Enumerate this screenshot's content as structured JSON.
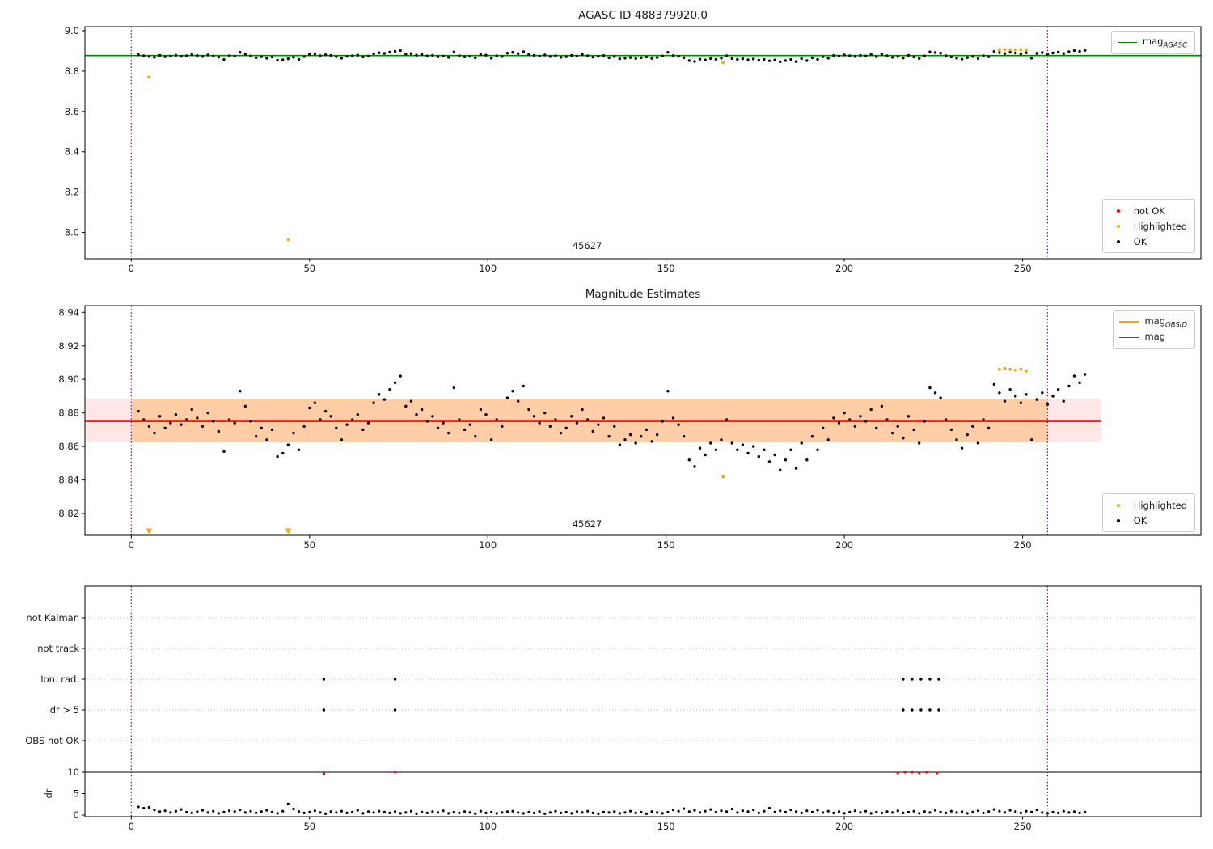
{
  "colors": {
    "mag_agasc_line": "#008000",
    "mag_line": "#ff0000",
    "highlighted": "#ffa500",
    "not_ok": "#ff0000",
    "ok": "#000000",
    "obsid_boundary": "#800080",
    "band_inner": "rgba(255,140,0,0.28)",
    "band_outer": "rgba(255,60,60,0.12)",
    "grid_dotted": "#bdbdbd",
    "axis": "#000000",
    "text": "#1a1a1a"
  },
  "series_data": {
    "x": [
      2,
      3.5,
      5,
      6.5,
      8,
      9.5,
      11,
      12.5,
      14,
      15.5,
      17,
      18.5,
      20,
      21.5,
      23,
      24.5,
      26,
      27.5,
      29,
      30.5,
      32,
      33.5,
      35,
      36.5,
      38,
      39.5,
      41,
      42.5,
      44,
      45.5,
      47,
      48.5,
      50,
      51.5,
      53,
      54.5,
      56,
      57.5,
      59,
      60.5,
      62,
      63.5,
      65,
      66.5,
      68,
      69.5,
      71,
      72.5,
      74,
      75.5,
      77,
      78.5,
      80,
      81.5,
      83,
      84.5,
      86,
      87.5,
      89,
      90.5,
      92,
      93.5,
      95,
      96.5,
      98,
      99.5,
      101,
      102.5,
      104,
      105.5,
      107,
      108.5,
      110,
      111.5,
      113,
      114.5,
      116,
      117.5,
      119,
      120.5,
      122,
      123.5,
      125,
      126.5,
      128,
      129.5,
      131,
      132.5,
      134,
      135.5,
      137,
      138.5,
      140,
      141.5,
      143,
      144.5,
      146,
      147.5,
      149,
      150.5,
      152,
      153.5,
      155,
      156.5,
      158,
      159.5,
      161,
      162.5,
      164,
      165.5,
      167,
      168.5,
      170,
      171.5,
      173,
      174.5,
      176,
      177.5,
      179,
      180.5,
      182,
      183.5,
      185,
      186.5,
      188,
      189.5,
      191,
      192.5,
      194,
      195.5,
      197,
      198.5,
      200,
      201.5,
      203,
      204.5,
      206,
      207.5,
      209,
      210.5,
      212,
      213.5,
      215,
      216.5,
      218,
      219.5,
      221,
      222.5,
      224,
      225.5,
      227,
      228.5,
      230,
      231.5,
      233,
      234.5,
      236,
      237.5,
      239,
      240.5,
      242,
      243.5,
      245,
      246.5,
      248,
      249.5,
      251,
      252.5,
      254,
      255.5,
      257,
      258.5,
      260,
      261.5,
      263,
      264.5,
      266,
      267.5
    ],
    "mag": [
      8.881,
      8.876,
      8.872,
      8.868,
      8.878,
      8.871,
      8.874,
      8.879,
      8.873,
      8.876,
      8.882,
      8.877,
      8.872,
      8.88,
      8.875,
      8.869,
      8.857,
      8.876,
      8.874,
      8.893,
      8.884,
      8.875,
      8.866,
      8.871,
      8.864,
      8.87,
      8.854,
      8.856,
      8.861,
      8.868,
      8.858,
      8.872,
      8.883,
      8.886,
      8.876,
      8.881,
      8.878,
      8.871,
      8.864,
      8.873,
      8.876,
      8.879,
      8.87,
      8.874,
      8.886,
      8.891,
      8.888,
      8.894,
      8.898,
      8.902,
      8.884,
      8.887,
      8.879,
      8.882,
      8.875,
      8.878,
      8.871,
      8.874,
      8.868,
      8.895,
      8.876,
      8.87,
      8.873,
      8.866,
      8.882,
      8.879,
      8.864,
      8.876,
      8.872,
      8.889,
      8.893,
      8.887,
      8.896,
      8.882,
      8.878,
      8.874,
      8.88,
      8.872,
      8.876,
      8.868,
      8.871,
      8.878,
      8.874,
      8.882,
      8.876,
      8.869,
      8.873,
      8.877,
      8.866,
      8.872,
      8.861,
      8.864,
      8.867,
      8.862,
      8.866,
      8.87,
      8.863,
      8.867,
      8.875,
      8.893,
      8.877,
      8.873,
      8.866,
      8.852,
      8.848,
      8.859,
      8.855,
      8.862,
      8.858,
      8.864,
      8.876,
      8.862,
      8.858,
      8.861,
      8.856,
      8.86,
      8.854,
      8.858,
      8.851,
      8.855,
      8.846,
      8.852,
      8.858,
      8.847,
      8.862,
      8.852,
      8.866,
      8.858,
      8.871,
      8.864,
      8.877,
      8.874,
      8.88,
      8.876,
      8.872,
      8.878,
      8.875,
      8.882,
      8.871,
      8.884,
      8.876,
      8.868,
      8.872,
      8.865,
      8.878,
      8.87,
      8.862,
      8.875,
      8.895,
      8.892,
      8.889,
      8.876,
      8.87,
      8.864,
      8.859,
      8.867,
      8.872,
      8.862,
      8.876,
      8.871,
      8.897,
      8.892,
      8.887,
      8.894,
      8.89,
      8.886,
      8.891,
      8.864,
      8.888,
      8.892,
      8.885,
      8.89,
      8.894,
      8.887,
      8.896,
      8.902,
      8.898,
      8.903
    ],
    "dr": [
      1.9,
      1.6,
      1.8,
      1.2,
      0.8,
      1.0,
      0.6,
      0.9,
      1.3,
      0.7,
      0.5,
      0.8,
      1.1,
      0.6,
      0.9,
      0.4,
      0.7,
      1.0,
      0.8,
      1.2,
      0.6,
      0.9,
      0.5,
      0.8,
      1.1,
      0.7,
      0.4,
      0.9,
      2.6,
      1.4,
      0.8,
      0.5,
      0.7,
      1.0,
      0.6,
      0.3,
      0.8,
      0.6,
      0.9,
      0.5,
      0.7,
      1.1,
      0.4,
      0.8,
      0.6,
      0.9,
      0.7,
      0.5,
      0.8,
      0.4,
      0.6,
      0.9,
      0.3,
      0.7,
      0.5,
      0.8,
      0.6,
      1.0,
      0.4,
      0.7,
      0.5,
      0.8,
      0.6,
      0.3,
      0.9,
      0.5,
      0.7,
      0.4,
      0.6,
      0.8,
      0.9,
      0.6,
      0.4,
      0.7,
      0.5,
      0.8,
      0.3,
      0.6,
      0.9,
      0.5,
      0.7,
      0.4,
      0.8,
      0.6,
      0.9,
      0.5,
      0.3,
      0.7,
      0.6,
      0.8,
      0.4,
      0.6,
      0.9,
      0.5,
      0.7,
      0.3,
      0.8,
      0.6,
      0.4,
      0.7,
      1.2,
      0.9,
      1.5,
      0.8,
      1.1,
      0.6,
      0.9,
      1.3,
      0.7,
      1.0,
      0.8,
      1.4,
      0.6,
      1.0,
      0.8,
      1.2,
      0.5,
      0.9,
      1.6,
      0.7,
      1.0,
      0.7,
      1.2,
      0.8,
      0.5,
      1.0,
      0.7,
      1.1,
      0.6,
      0.9,
      0.5,
      0.8,
      0.4,
      0.7,
      1.0,
      0.6,
      0.9,
      0.4,
      0.7,
      0.5,
      0.8,
      0.6,
      1.0,
      0.5,
      0.7,
      0.9,
      0.4,
      0.8,
      0.6,
      1.1,
      0.7,
      0.5,
      0.9,
      0.6,
      0.8,
      0.4,
      0.7,
      1.0,
      0.5,
      0.8,
      1.3,
      0.9,
      0.6,
      1.1,
      0.8,
      0.5,
      0.9,
      0.7,
      1.2,
      0.6,
      0.4,
      0.7,
      0.5,
      0.9,
      0.6,
      0.8,
      0.5,
      0.7
    ]
  },
  "chart_data": [
    {
      "type": "scatter",
      "title": "AGASC ID 488379920.0",
      "xlim": [
        -13,
        300
      ],
      "ylim": [
        7.87,
        9.02
      ],
      "xticks": [
        0,
        50,
        100,
        150,
        200,
        250
      ],
      "yticks": [
        9.0,
        8.8,
        8.6,
        8.4,
        8.2,
        8.0
      ],
      "ytick_labels": [
        "9.0",
        "8.8",
        "8.6",
        "8.4",
        "8.2",
        "8.0"
      ],
      "mag_agasc": 8.877,
      "obsid_boundaries": [
        0,
        257
      ],
      "annotation": {
        "text": "45627",
        "x": 128.5
      },
      "legend_line": [
        {
          "main": "mag",
          "sub": "AGASC"
        }
      ],
      "legend_points": [
        {
          "label": "not OK"
        },
        {
          "label": "Highlighted"
        },
        {
          "label": "OK"
        }
      ],
      "highlighted": [
        [
          5,
          8.77
        ],
        [
          44,
          7.965
        ],
        [
          166,
          8.842
        ],
        [
          243.5,
          8.906
        ],
        [
          245,
          8.9065
        ],
        [
          246.5,
          8.906
        ],
        [
          248,
          8.9055
        ],
        [
          249.5,
          8.906
        ],
        [
          251,
          8.905
        ]
      ]
    },
    {
      "type": "scatter",
      "title": "Magnitude Estimates",
      "xlim": [
        -13,
        300
      ],
      "ylim": [
        8.807,
        8.944
      ],
      "xticks": [
        0,
        50,
        100,
        150,
        200,
        250
      ],
      "yticks": [
        8.94,
        8.92,
        8.9,
        8.88,
        8.86,
        8.84,
        8.82
      ],
      "ytick_labels": [
        "8.94",
        "8.92",
        "8.90",
        "8.88",
        "8.86",
        "8.84",
        "8.82"
      ],
      "mag": 8.875,
      "band": {
        "low": 8.8625,
        "high": 8.8885,
        "outer_x": [
          -13,
          272
        ],
        "inner_x": [
          0,
          257
        ]
      },
      "obsid_boundaries": [
        0,
        257
      ],
      "annotation": {
        "text": "45627",
        "x": 128.5
      },
      "legend_lines": [
        {
          "main": "mag",
          "sub": "OBSID"
        },
        {
          "main": "mag",
          "sub": ""
        }
      ],
      "legend_points": [
        {
          "label": "Highlighted"
        },
        {
          "label": "OK"
        }
      ],
      "highlighted": [
        [
          166,
          8.842
        ],
        [
          243.5,
          8.906
        ],
        [
          245,
          8.9065
        ],
        [
          246.5,
          8.906
        ],
        [
          248,
          8.9055
        ],
        [
          249.5,
          8.906
        ],
        [
          251,
          8.905
        ]
      ],
      "clipped_low_x": [
        5,
        44
      ]
    },
    {
      "type": "flags",
      "xlim": [
        -13,
        300
      ],
      "xticks": [
        0,
        50,
        100,
        150,
        200,
        250
      ],
      "rows": [
        "not Kalman",
        "not track",
        "Ion. rad.",
        "dr > 5",
        "OBS not OK"
      ],
      "row_points": [
        {
          "row": "Ion. rad.",
          "x": [
            54,
            74,
            216.5,
            219,
            221.5,
            224,
            226.5
          ]
        },
        {
          "row": "dr > 5",
          "x": [
            54,
            74,
            216.5,
            219,
            221.5,
            224,
            226.5
          ]
        }
      ],
      "dr_axis": {
        "label": "dr",
        "ticks": [
          10,
          5,
          0
        ],
        "limit_line": 10
      },
      "dr_not_ok": [
        [
          54,
          9.6
        ],
        [
          74,
          10
        ],
        [
          215,
          9.8
        ],
        [
          217,
          10
        ],
        [
          219,
          10
        ],
        [
          221,
          9.8
        ],
        [
          223,
          10
        ],
        [
          226,
          9.8
        ]
      ],
      "obsid_boundaries": [
        0,
        257
      ]
    }
  ]
}
